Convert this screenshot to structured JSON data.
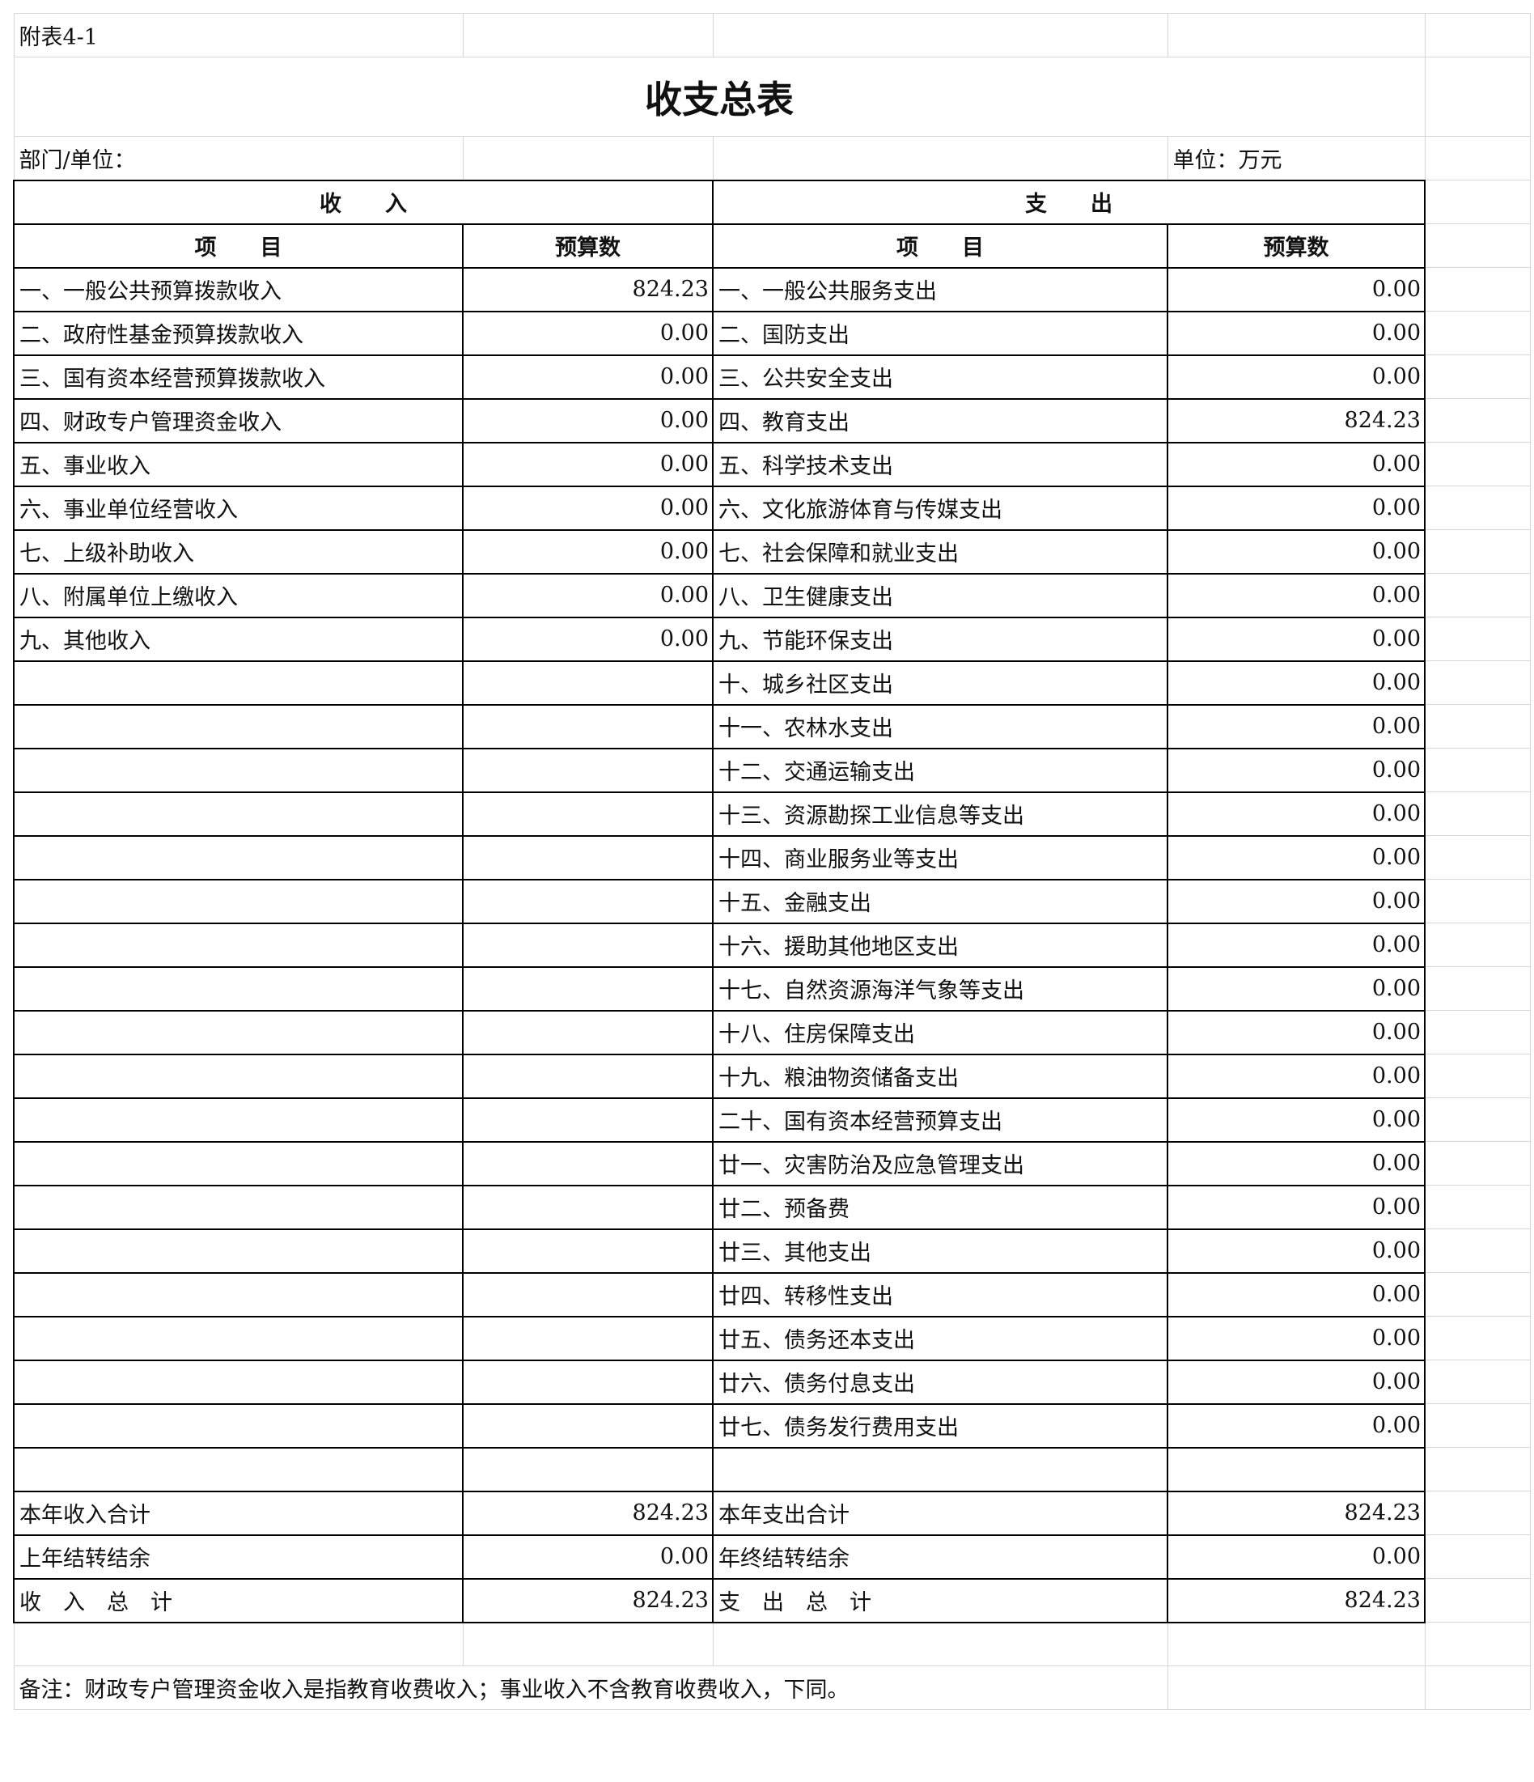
{
  "header": {
    "annex": "附表4-1",
    "title": "收支总表",
    "dept_label": "部门/单位：",
    "unit_label": "单位：万元"
  },
  "columns": {
    "income": "收　　入",
    "expense": "支　　出",
    "item": "项　　目",
    "budget": "预算数"
  },
  "rows": [
    {
      "in_item": "一、一般公共预算拨款收入",
      "in_val": "824.23",
      "ex_item": "一、一般公共服务支出",
      "ex_val": "0.00"
    },
    {
      "in_item": "二、政府性基金预算拨款收入",
      "in_val": "0.00",
      "ex_item": "二、国防支出",
      "ex_val": "0.00"
    },
    {
      "in_item": "三、国有资本经营预算拨款收入",
      "in_val": "0.00",
      "ex_item": "三、公共安全支出",
      "ex_val": "0.00"
    },
    {
      "in_item": "四、财政专户管理资金收入",
      "in_val": "0.00",
      "ex_item": "四、教育支出",
      "ex_val": "824.23"
    },
    {
      "in_item": "五、事业收入",
      "in_val": "0.00",
      "ex_item": "五、科学技术支出",
      "ex_val": "0.00"
    },
    {
      "in_item": "六、事业单位经营收入",
      "in_val": "0.00",
      "ex_item": "六、文化旅游体育与传媒支出",
      "ex_val": "0.00"
    },
    {
      "in_item": "七、上级补助收入",
      "in_val": "0.00",
      "ex_item": "七、社会保障和就业支出",
      "ex_val": "0.00"
    },
    {
      "in_item": "八、附属单位上缴收入",
      "in_val": "0.00",
      "ex_item": "八、卫生健康支出",
      "ex_val": "0.00"
    },
    {
      "in_item": "九、其他收入",
      "in_val": "0.00",
      "ex_item": "九、节能环保支出",
      "ex_val": "0.00"
    },
    {
      "in_item": "",
      "in_val": "",
      "ex_item": "十、城乡社区支出",
      "ex_val": "0.00"
    },
    {
      "in_item": "",
      "in_val": "",
      "ex_item": "十一、农林水支出",
      "ex_val": "0.00"
    },
    {
      "in_item": "",
      "in_val": "",
      "ex_item": "十二、交通运输支出",
      "ex_val": "0.00"
    },
    {
      "in_item": "",
      "in_val": "",
      "ex_item": "十三、资源勘探工业信息等支出",
      "ex_val": "0.00"
    },
    {
      "in_item": "",
      "in_val": "",
      "ex_item": "十四、商业服务业等支出",
      "ex_val": "0.00"
    },
    {
      "in_item": "",
      "in_val": "",
      "ex_item": "十五、金融支出",
      "ex_val": "0.00"
    },
    {
      "in_item": "",
      "in_val": "",
      "ex_item": "十六、援助其他地区支出",
      "ex_val": "0.00"
    },
    {
      "in_item": "",
      "in_val": "",
      "ex_item": "十七、自然资源海洋气象等支出",
      "ex_val": "0.00"
    },
    {
      "in_item": "",
      "in_val": "",
      "ex_item": "十八、住房保障支出",
      "ex_val": "0.00"
    },
    {
      "in_item": "",
      "in_val": "",
      "ex_item": "十九、粮油物资储备支出",
      "ex_val": "0.00"
    },
    {
      "in_item": "",
      "in_val": "",
      "ex_item": "二十、国有资本经营预算支出",
      "ex_val": "0.00"
    },
    {
      "in_item": "",
      "in_val": "",
      "ex_item": "廿一、灾害防治及应急管理支出",
      "ex_val": "0.00"
    },
    {
      "in_item": "",
      "in_val": "",
      "ex_item": "廿二、预备费",
      "ex_val": "0.00"
    },
    {
      "in_item": "",
      "in_val": "",
      "ex_item": "廿三、其他支出",
      "ex_val": "0.00"
    },
    {
      "in_item": "",
      "in_val": "",
      "ex_item": "廿四、转移性支出",
      "ex_val": "0.00"
    },
    {
      "in_item": "",
      "in_val": "",
      "ex_item": "廿五、债务还本支出",
      "ex_val": "0.00"
    },
    {
      "in_item": "",
      "in_val": "",
      "ex_item": "廿六、债务付息支出",
      "ex_val": "0.00"
    },
    {
      "in_item": "",
      "in_val": "",
      "ex_item": "廿七、债务发行费用支出",
      "ex_val": "0.00"
    },
    {
      "in_item": "",
      "in_val": "",
      "ex_item": "",
      "ex_val": ""
    },
    {
      "in_item": "本年收入合计",
      "in_val": "824.23",
      "ex_item": "本年支出合计",
      "ex_val": "824.23"
    },
    {
      "in_item": "上年结转结余",
      "in_val": "0.00",
      "ex_item": "年终结转结余",
      "ex_val": "0.00"
    },
    {
      "in_item": "收　入　总　计",
      "in_val": "824.23",
      "ex_item": "支　出　总　计",
      "ex_val": "824.23"
    }
  ],
  "note": "备注：财政专户管理资金收入是指教育收费收入；事业收入不含教育收费收入，下同。"
}
